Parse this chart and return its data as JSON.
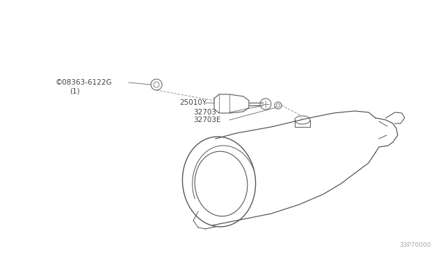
{
  "bg_color": "#ffffff",
  "line_color": "#555555",
  "text_color": "#444444",
  "label_08363": "©08363-6122G",
  "label_08363_sub": "(1)",
  "label_25010": "25010Y",
  "label_32703": "32703",
  "label_32703E": "32703E",
  "diagram_number": "33P70000"
}
